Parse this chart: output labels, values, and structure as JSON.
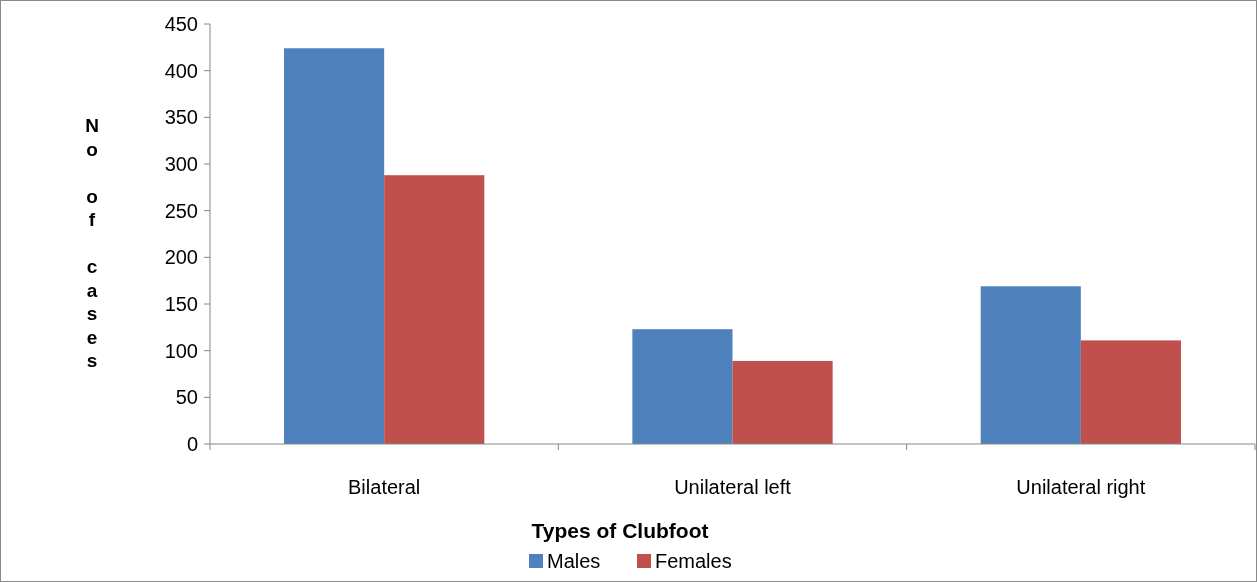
{
  "chart_data": {
    "type": "bar",
    "xlabel": "Types of Clubfoot",
    "ylabel": "No of cases",
    "categories": [
      "Bilateral",
      "Unilateral left",
      "Unilateral right"
    ],
    "series": [
      {
        "name": "Males",
        "color": "#4f81bd",
        "values": [
          424,
          123,
          169
        ]
      },
      {
        "name": "Females",
        "color": "#c0504d",
        "values": [
          288,
          89,
          111
        ]
      }
    ],
    "ylim": [
      0,
      450
    ],
    "yticks": [
      0,
      50,
      100,
      150,
      200,
      250,
      300,
      350,
      400,
      450
    ],
    "grid": false,
    "legend": "bottom"
  }
}
